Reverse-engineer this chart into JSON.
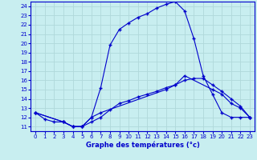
{
  "title": "Graphe des températures (°c)",
  "bg_color": "#c8eef0",
  "grid_color": "#b0d8da",
  "line_color": "#0000cc",
  "xlim": [
    -0.5,
    23.5
  ],
  "ylim": [
    10.5,
    24.5
  ],
  "xticks": [
    0,
    1,
    2,
    3,
    4,
    5,
    6,
    7,
    8,
    9,
    10,
    11,
    12,
    13,
    14,
    15,
    16,
    17,
    18,
    19,
    20,
    21,
    22,
    23
  ],
  "yticks": [
    11,
    12,
    13,
    14,
    15,
    16,
    17,
    18,
    19,
    20,
    21,
    22,
    23,
    24
  ],
  "curve1_x": [
    0,
    1,
    2,
    3,
    4,
    5,
    6,
    7,
    8,
    9,
    10,
    11,
    12,
    13,
    14,
    15,
    16,
    17,
    18,
    19,
    20,
    21,
    22,
    23
  ],
  "curve1_y": [
    12.5,
    11.8,
    11.5,
    11.5,
    11.0,
    11.0,
    12.0,
    15.2,
    19.8,
    21.5,
    22.2,
    22.8,
    23.2,
    23.8,
    24.2,
    24.5,
    23.5,
    20.5,
    16.5,
    14.5,
    12.5,
    12.0,
    12.0,
    12.0
  ],
  "curve2_x": [
    0,
    3,
    4,
    5,
    6,
    7,
    8,
    9,
    10,
    11,
    12,
    13,
    14,
    15,
    16,
    17,
    18,
    19,
    20,
    21,
    22,
    23
  ],
  "curve2_y": [
    12.5,
    11.5,
    11.0,
    11.0,
    11.5,
    12.0,
    12.8,
    13.5,
    13.8,
    14.2,
    14.5,
    14.8,
    15.2,
    15.5,
    16.0,
    16.2,
    16.2,
    15.5,
    14.8,
    14.0,
    13.2,
    12.0
  ],
  "curve3_x": [
    0,
    3,
    4,
    5,
    6,
    7,
    14,
    15,
    16,
    19,
    20,
    21,
    22,
    23
  ],
  "curve3_y": [
    12.5,
    11.5,
    11.0,
    11.0,
    12.0,
    12.5,
    15.0,
    15.5,
    16.5,
    15.0,
    14.5,
    13.5,
    13.0,
    12.0
  ]
}
